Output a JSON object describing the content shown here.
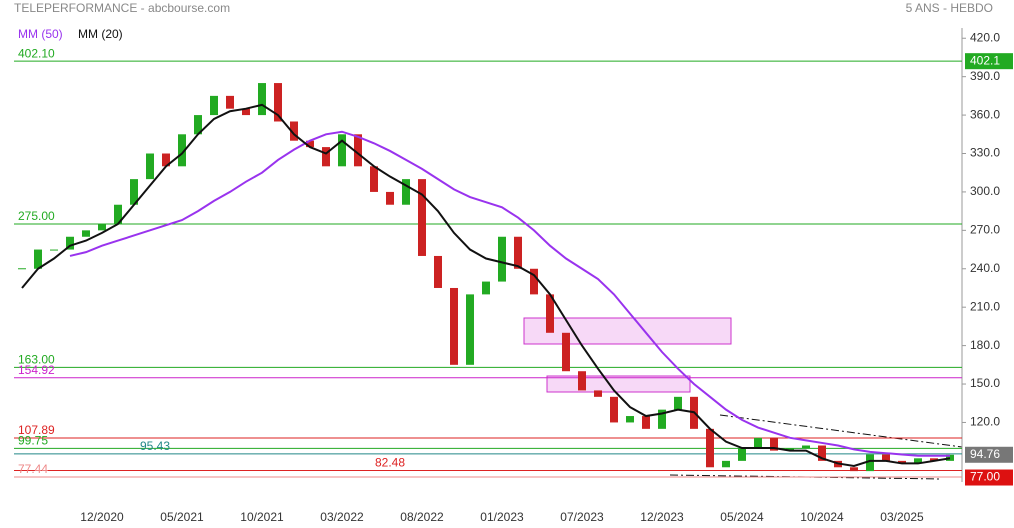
{
  "chart_data": {
    "type": "candlestick",
    "title": "TELEPERFORMANCE - abcbourse.com",
    "subtitle": "5 ANS - HEBDO",
    "categories": [
      null,
      null,
      null,
      null,
      null,
      "12/2020",
      null,
      null,
      null,
      null,
      "05/2021",
      null,
      null,
      null,
      null,
      "10/2021",
      null,
      null,
      null,
      null,
      "03/2022",
      null,
      null,
      null,
      null,
      "08/2022",
      null,
      null,
      null,
      null,
      "01/2023",
      null,
      null,
      null,
      null,
      "07/2023",
      null,
      null,
      null,
      null,
      "12/2023",
      null,
      null,
      null,
      null,
      "05/2024",
      null,
      null,
      null,
      null,
      "10/2024",
      null,
      null,
      null,
      null,
      "03/2025",
      null,
      null,
      null
    ],
    "close": [
      240,
      255,
      255,
      265,
      270,
      275,
      290,
      310,
      330,
      320,
      345,
      360,
      375,
      365,
      360,
      385,
      355,
      340,
      335,
      320,
      345,
      320,
      300,
      290,
      310,
      250,
      225,
      165,
      220,
      230,
      265,
      240,
      220,
      190,
      160,
      145,
      140,
      120,
      125,
      115,
      130,
      140,
      115,
      85,
      90,
      100,
      108,
      98,
      100,
      102,
      90,
      85,
      82,
      95,
      90,
      88,
      92,
      90,
      94.76
    ],
    "up_color": "#22aa22",
    "down_color": "#cc2222",
    "series": [
      {
        "name": "MM (50)",
        "color": "#9933ee",
        "values": [
          null,
          null,
          null,
          250,
          253,
          258,
          262,
          266,
          270,
          274,
          278,
          285,
          293,
          300,
          308,
          315,
          325,
          333,
          340,
          345,
          347,
          343,
          338,
          332,
          325,
          318,
          310,
          302,
          296,
          292,
          288,
          280,
          270,
          258,
          248,
          240,
          232,
          220,
          205,
          190,
          175,
          162,
          150,
          140,
          130,
          122,
          116,
          112,
          108,
          106,
          104,
          102,
          99,
          97,
          96,
          95,
          94,
          94,
          94
        ]
      },
      {
        "name": "MM (20)",
        "color": "#111111",
        "values": [
          225,
          240,
          248,
          258,
          262,
          268,
          275,
          290,
          305,
          320,
          330,
          345,
          357,
          363,
          365,
          368,
          360,
          345,
          335,
          330,
          340,
          330,
          320,
          312,
          305,
          298,
          285,
          268,
          255,
          248,
          245,
          242,
          235,
          220,
          200,
          180,
          162,
          145,
          132,
          125,
          127,
          130,
          128,
          115,
          105,
          100,
          100,
          100,
          98,
          98,
          92,
          88,
          86,
          90,
          90,
          88,
          88,
          90,
          92
        ]
      }
    ],
    "ylim": [
      73.5,
      428
    ],
    "yticks": [
      {
        "value": 420,
        "label": "420.0"
      },
      {
        "value": 390,
        "label": "390.0"
      },
      {
        "value": 360,
        "label": "360.0"
      },
      {
        "value": 330,
        "label": "330.0"
      },
      {
        "value": 300,
        "label": "300.0"
      },
      {
        "value": 270,
        "label": "270.0"
      },
      {
        "value": 240,
        "label": "240.0"
      },
      {
        "value": 210,
        "label": "210.0"
      },
      {
        "value": 180,
        "label": "180.0"
      },
      {
        "value": 150,
        "label": "150.0"
      },
      {
        "value": 120,
        "label": "120.0"
      }
    ],
    "levels": [
      {
        "value": 402.1,
        "label": "402.10",
        "color": "#22aa22"
      },
      {
        "value": 275,
        "label": "275.00",
        "color": "#22aa22"
      },
      {
        "value": 163,
        "label": "163.00",
        "color": "#22aa22"
      },
      {
        "value": 154.92,
        "label": "154.92",
        "color": "#cc22cc"
      },
      {
        "value": 107.89,
        "label": "107.89",
        "color": "#dd2222"
      },
      {
        "value": 99.75,
        "label": "99.75",
        "color": "#22aa22"
      },
      {
        "value": 95.43,
        "label": "95.43",
        "color": "#228888"
      },
      {
        "value": 82.48,
        "label": "82.48",
        "color": "#dd2222"
      },
      {
        "value": 77.44,
        "label": "77.44",
        "color": "#ee8888"
      }
    ],
    "price_tags": [
      {
        "value": 402.1,
        "label": "402.1",
        "color": "#22aa22"
      },
      {
        "value": 94.76,
        "label": "94.76",
        "color": "#777777"
      },
      {
        "value": 77,
        "label": "77.00",
        "color": "#dd1111"
      }
    ]
  }
}
